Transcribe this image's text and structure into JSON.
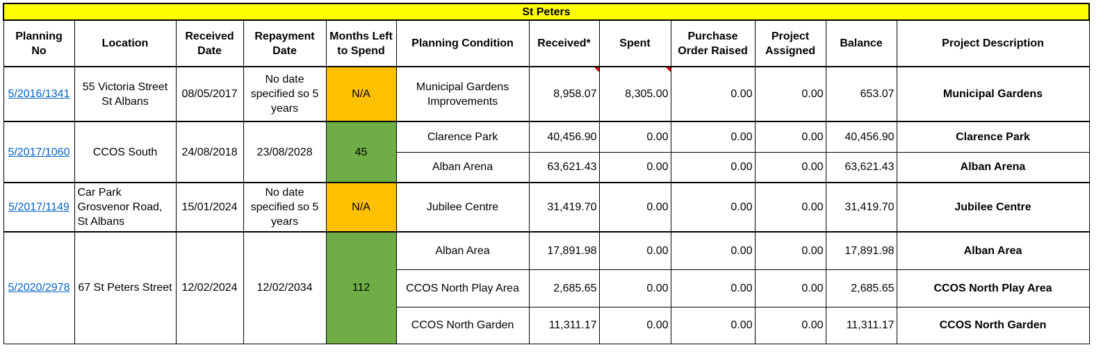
{
  "title": "St Peters",
  "headers": [
    "Planning No",
    "Location",
    "Received Date",
    "Repayment Date",
    "Months Left to Spend",
    "Planning Condition",
    "Received*",
    "Spent",
    "Purchase Order Raised",
    "Project Assigned",
    "Balance",
    "Project Description"
  ],
  "groups": [
    {
      "planning_no": "5/2016/1341",
      "location": "55 Victoria Street St Albans",
      "received_date": "08/05/2017",
      "repayment_date": "No date specified so 5 years",
      "months_left": "N/A",
      "months_status_color": "#ffc000",
      "rows": [
        {
          "condition": "Municipal Gardens Improvements",
          "received": "8,958.07",
          "spent": "8,305.00",
          "po": "0.00",
          "assigned": "0.00",
          "balance": "653.07",
          "description": "Municipal Gardens"
        }
      ]
    },
    {
      "planning_no": "5/2017/1060",
      "location": "CCOS South",
      "received_date": "24/08/2018",
      "repayment_date": "23/08/2028",
      "months_left": "45",
      "months_status_color": "#70ad47",
      "rows": [
        {
          "condition": "Clarence Park",
          "received": "40,456.90",
          "spent": "0.00",
          "po": "0.00",
          "assigned": "0.00",
          "balance": "40,456.90",
          "description": "Clarence Park"
        },
        {
          "condition": "Alban Arena",
          "received": "63,621.43",
          "spent": "0.00",
          "po": "0.00",
          "assigned": "0.00",
          "balance": "63,621.43",
          "description": "Alban Arena"
        }
      ]
    },
    {
      "planning_no": "5/2017/1149",
      "location": "Car Park Grosvenor Road, St Albans",
      "received_date": "15/01/2024",
      "repayment_date": "No date specified so 5 years",
      "months_left": "N/A",
      "months_status_color": "#ffc000",
      "rows": [
        {
          "condition": "Jubilee Centre",
          "received": "31,419.70",
          "spent": "0.00",
          "po": "0.00",
          "assigned": "0.00",
          "balance": "31,419.70",
          "description": "Jubilee Centre"
        }
      ]
    },
    {
      "planning_no": "5/2020/2978",
      "location": "67 St Peters Street",
      "received_date": "12/02/2024",
      "repayment_date": "12/02/2034",
      "months_left": "112",
      "months_status_color": "#70ad47",
      "rows": [
        {
          "condition": "Alban Area",
          "received": "17,891.98",
          "spent": "0.00",
          "po": "0.00",
          "assigned": "0.00",
          "balance": "17,891.98",
          "description": "Alban Area"
        },
        {
          "condition": "CCOS North Play Area",
          "received": "2,685.65",
          "spent": "0.00",
          "po": "0.00",
          "assigned": "0.00",
          "balance": "2,685.65",
          "description": "CCOS North Play Area"
        },
        {
          "condition": "CCOS North Garden",
          "received": "11,311.17",
          "spent": "0.00",
          "po": "0.00",
          "assigned": "0.00",
          "balance": "11,311.17",
          "description": "CCOS North Garden"
        }
      ]
    }
  ]
}
